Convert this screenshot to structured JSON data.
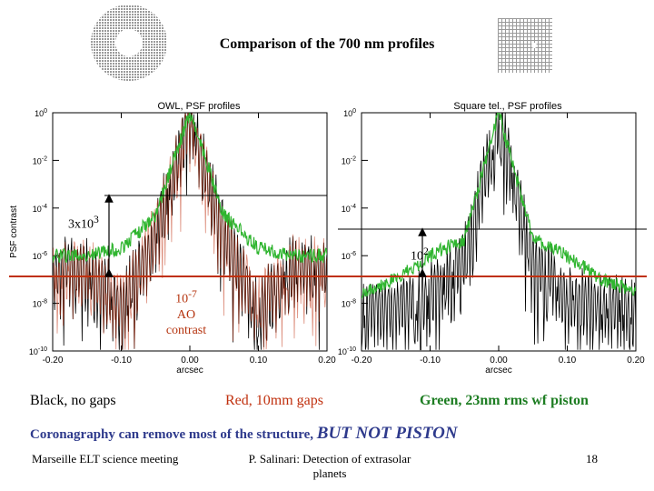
{
  "title": "Comparison of the 700 nm profiles",
  "annotations": {
    "gap_ratio": "3x10",
    "gap_ratio_exp": "3",
    "square_ratio": "10",
    "square_ratio_exp": "2",
    "ao_line1": "10",
    "ao_line1_exp": "-7",
    "ao_line2": "AO",
    "ao_line3": "contrast"
  },
  "legend": {
    "black": "Black, no gaps",
    "red": "Red, 10mm gaps",
    "green": "Green, 23nm rms wf piston"
  },
  "conclusion": {
    "text": "Coronagraphy can remove most of the structure,",
    "emphasis": "BUT NOT PISTON"
  },
  "footer": {
    "left": "Marseille ELT science meeting",
    "center": "P. Salinari: Detection of extrasolar planets",
    "page": "18"
  },
  "colors": {
    "black_series": "#000000",
    "red_series": "#c0300e",
    "green_series": "#2fb52f",
    "conclusion_text": "#2e3a8c"
  },
  "chart_data": [
    {
      "type": "line",
      "title": "OWL, PSF profiles",
      "xlabel": "arcsec",
      "ylabel": "PSF contrast",
      "xlim": [
        -0.2,
        0.2
      ],
      "ylim": [
        1e-10,
        1
      ],
      "yscale": "log",
      "xticks": [
        "-0.20",
        "-0.10",
        "0.00",
        "0.10",
        "0.20"
      ],
      "yticks": [
        "10^0",
        "10^-2",
        "10^-4",
        "10^-6",
        "10^-8",
        "10^-10"
      ],
      "series": [
        {
          "color": "black",
          "x": [
            -0.2,
            -0.15,
            -0.1,
            -0.05,
            0.0,
            0.05,
            0.1,
            0.15,
            0.2
          ],
          "y": [
            3e-07,
            5e-07,
            1e-08,
            1e-05,
            1,
            1e-05,
            1e-08,
            5e-07,
            3e-07
          ]
        },
        {
          "color": "red",
          "x": [
            -0.2,
            -0.15,
            -0.1,
            -0.05,
            0.0,
            0.05,
            0.1,
            0.15,
            0.2
          ],
          "y": [
            3e-07,
            5e-07,
            1e-08,
            1e-05,
            1,
            1e-05,
            1e-08,
            5e-07,
            3e-07
          ]
        },
        {
          "color": "green",
          "x": [
            -0.2,
            -0.15,
            -0.1,
            -0.05,
            0.0,
            0.05,
            0.1,
            0.15,
            0.2
          ],
          "y": [
            1e-06,
            1e-06,
            2e-06,
            5e-05,
            1,
            5e-05,
            2e-06,
            1e-06,
            1e-06
          ]
        }
      ]
    },
    {
      "type": "line",
      "title": "Square tel., PSF profiles",
      "xlabel": "arcsec",
      "ylabel": "",
      "xlim": [
        -0.2,
        0.2
      ],
      "ylim": [
        1e-10,
        1
      ],
      "yscale": "log",
      "xticks": [
        "-0.20",
        "-0.10",
        "0.00",
        "0.10",
        "0.20"
      ],
      "yticks": [
        "10^0",
        "10^-2",
        "10^-4",
        "10^-6",
        "10^-8",
        "10^-10"
      ],
      "series": [
        {
          "color": "black",
          "x": [
            -0.2,
            -0.15,
            -0.1,
            -0.05,
            0.0,
            0.05,
            0.1,
            0.15,
            0.2
          ],
          "y": [
            1e-08,
            1e-08,
            3e-08,
            1e-06,
            1,
            1e-06,
            3e-08,
            1e-08,
            1e-08
          ]
        },
        {
          "color": "green",
          "x": [
            -0.2,
            -0.15,
            -0.1,
            -0.05,
            0.0,
            0.05,
            0.1,
            0.15,
            0.2
          ],
          "y": [
            3e-08,
            1e-07,
            1e-06,
            5e-06,
            1,
            5e-06,
            1e-06,
            1e-07,
            3e-08
          ]
        }
      ]
    }
  ]
}
